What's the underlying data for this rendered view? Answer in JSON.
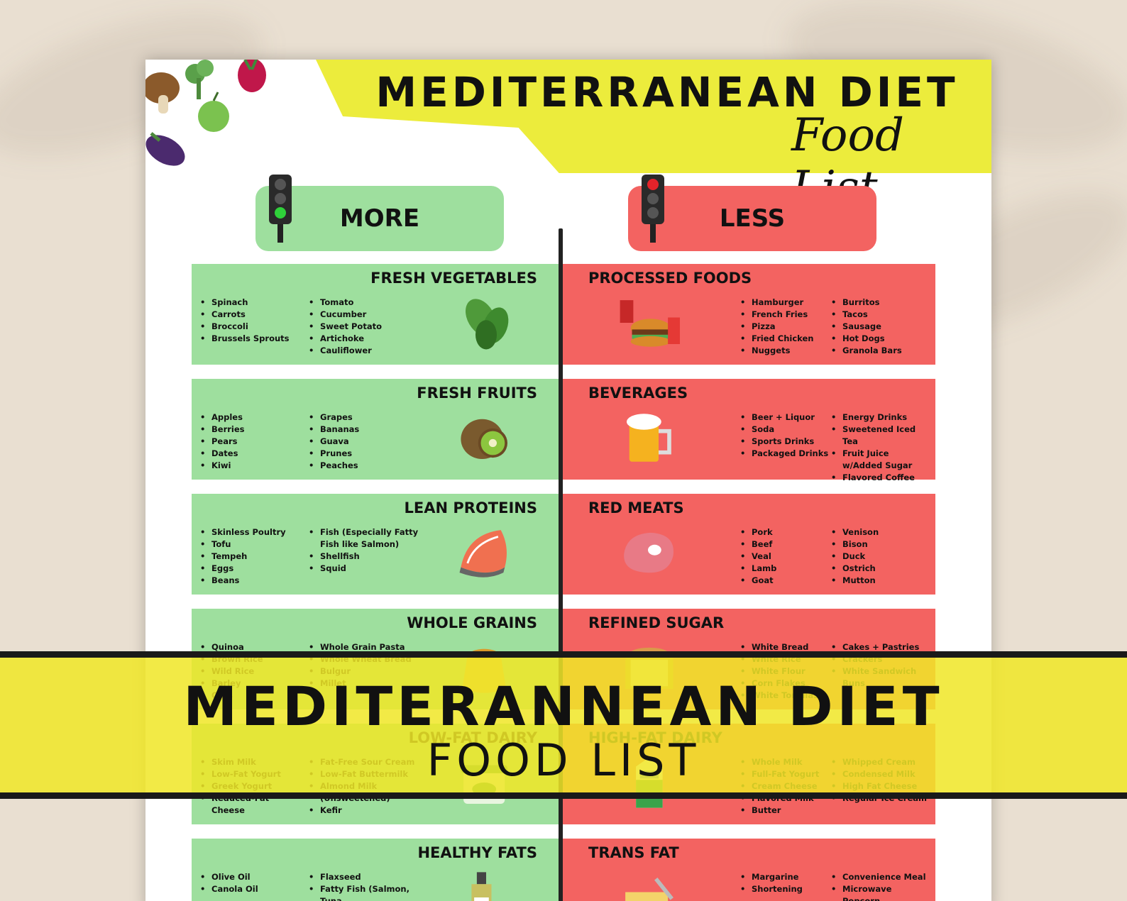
{
  "poster": {
    "title": "MEDITERRANEAN DIET",
    "subtitle": "Food List",
    "more_label": "MORE",
    "less_label": "LESS"
  },
  "more": [
    {
      "title": "FRESH VEGETABLES",
      "icon": "spinach-icon",
      "col1": [
        "Spinach",
        "Carrots",
        "Broccoli",
        "Brussels Sprouts"
      ],
      "col2": [
        "Tomato",
        "Cucumber",
        "Sweet Potato",
        "Artichoke",
        "Cauliflower"
      ]
    },
    {
      "title": "FRESH FRUITS",
      "icon": "kiwi-icon",
      "col1": [
        "Apples",
        "Berries",
        "Pears",
        "Dates",
        "Kiwi"
      ],
      "col2": [
        "Grapes",
        "Bananas",
        "Guava",
        "Prunes",
        "Peaches"
      ]
    },
    {
      "title": "LEAN PROTEINS",
      "icon": "salmon-icon",
      "col1": [
        "Skinless Poultry",
        "Tofu",
        "Tempeh",
        "Eggs",
        "Beans"
      ],
      "col2": [
        "Fish (Especially Fatty Fish like Salmon)",
        "Shellfish",
        "Squid"
      ]
    },
    {
      "title": "WHOLE GRAINS",
      "icon": "grain-sack-icon",
      "col1": [
        "Quinoa",
        "Brown Rice",
        "Wild Rice",
        "Barley",
        "Oats"
      ],
      "col2": [
        "Whole Grain Pasta",
        "Whole Wheat Bread",
        "Bulgur",
        "Millet"
      ]
    },
    {
      "title": "LOW-FAT DAIRY",
      "icon": "yogurt-tub-icon",
      "col1": [
        "Skim Milk",
        "Low-Fat Yogurt",
        "Greek Yogurt",
        "Reduced-Fat Cheese"
      ],
      "col2": [
        "Fat-Free Sour Cream",
        "Low-Fat Buttermilk",
        "Almond Milk (Unsweetened)",
        "Kefir"
      ]
    },
    {
      "title": "HEALTHY FATS",
      "icon": "olive-oil-icon",
      "col1": [
        "Olive Oil",
        "Canola Oil"
      ],
      "col2": [
        "Flaxseed",
        "Fatty Fish (Salmon, Tuna"
      ]
    }
  ],
  "less": [
    {
      "title": "PROCESSED FOODS",
      "icon": "fast-food-icon",
      "col1": [
        "Hamburger",
        "French Fries",
        "Pizza",
        "Fried Chicken",
        "Nuggets"
      ],
      "col2": [
        "Burritos",
        "Tacos",
        "Sausage",
        "Hot Dogs",
        "Granola Bars"
      ]
    },
    {
      "title": "BEVERAGES",
      "icon": "beer-mug-icon",
      "col1": [
        "Beer + Liquor",
        "Soda",
        "Sports Drinks",
        "Packaged Drinks"
      ],
      "col2": [
        "Energy Drinks",
        "Sweetened Iced Tea",
        "Fruit Juice w/Added Sugar",
        "Flavored Coffee"
      ]
    },
    {
      "title": "RED MEATS",
      "icon": "steak-icon",
      "col1": [
        "Pork",
        "Beef",
        "Veal",
        "Lamb",
        "Goat"
      ],
      "col2": [
        "Venison",
        "Bison",
        "Duck",
        "Ostrich",
        "Mutton"
      ]
    },
    {
      "title": "REFINED SUGAR",
      "icon": "bread-icon",
      "col1": [
        "White Bread",
        "White Rice",
        "White Flour",
        "Corn Flakes",
        "White Tortillas"
      ],
      "col2": [
        "Cakes + Pastries",
        "Crackers",
        "White Sandwich Buns"
      ]
    },
    {
      "title": "HIGH-FAT DAIRY",
      "icon": "milk-carton-icon",
      "col1": [
        "Whole Milk",
        "Full-Fat Yogurt",
        "Cream Cheese",
        "Flavored Milk",
        "Butter"
      ],
      "col2": [
        "Whipped Cream",
        "Condensed Milk",
        "High Fat Cheese",
        "Regular Ice Cream"
      ]
    },
    {
      "title": "TRANS FAT",
      "icon": "butter-icon",
      "col1": [
        "Margarine",
        "Shortening"
      ],
      "col2": [
        "Convenience Meal",
        "Microwave Popcorn"
      ]
    }
  ],
  "banner": {
    "line1": "MEDITERANNEAN DIET",
    "line2": "FOOD LIST"
  }
}
